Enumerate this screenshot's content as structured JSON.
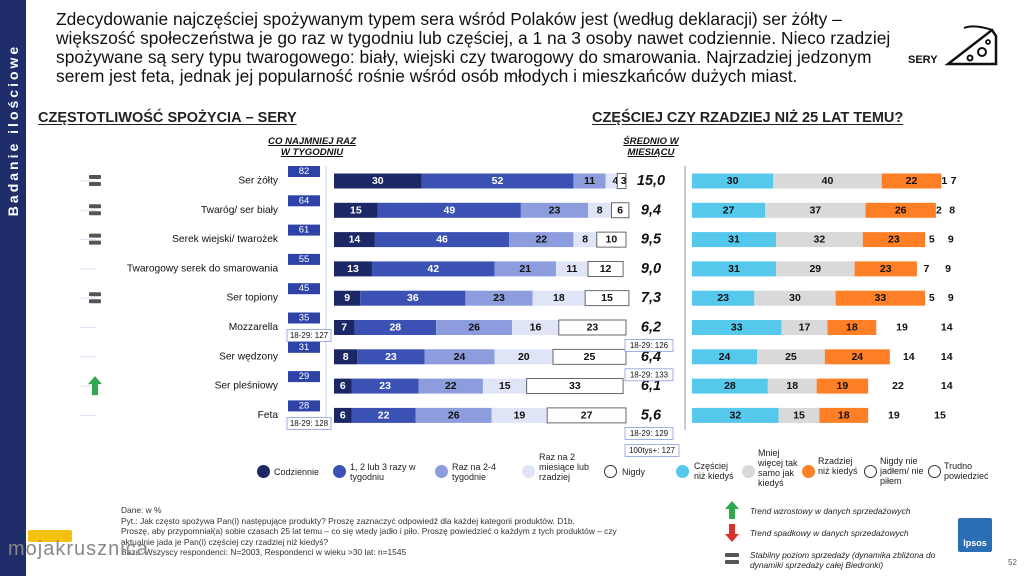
{
  "side_label": "Badanie ilościowe",
  "header": {
    "text": "Zdecydowanie najczęściej spożywanym typem sera wśród Polaków jest (według deklaracji) ser żółty – większość społeczeństwa je go raz w tygodniu lub częściej, a 1 na 3 osoby nawet codziennie. Nieco rzadziej spożywane są sery typu twarogowego: biały, wiejski czy twarogowy do smarowania. Najrzadziej jedzonym serem jest feta, jednak jej popularność rośnie wśród osób młodych i mieszkańców dużych miast.",
    "category": "SERY",
    "category_icon": "cheese-icon"
  },
  "left_title": {
    "pre": "CZĘSTOTLIWOŚĆ ",
    "bold": "SPOŻYCIA",
    "post": " – SERY"
  },
  "right_title": {
    "pre": "CZĘŚCIEJ CZY RZADZIEJ NIŻ ",
    "bold": "25",
    "post": " LAT TEMU?"
  },
  "col_head_weekly": [
    "CO NAJMNIEJ RAZ",
    "W TYGODNIU"
  ],
  "col_head_monthly": [
    "ŚREDNIO W",
    "MIESIĄCU"
  ],
  "colors": {
    "daily": "#1c2866",
    "weekly": "#3b52b4",
    "twofour": "#8c9cdc",
    "monthly": "#dfe4f6",
    "never_border": "#333333",
    "more": "#55c8ec",
    "same": "#d9d9d9",
    "less": "#ff7f27",
    "trend_up": "#2fa84f",
    "stable": "#555555",
    "badge": "#2d43a7"
  },
  "chart_data": [
    {
      "type": "bar",
      "title": "CZĘSTOTLIWOŚĆ SPOŻYCIA – SERY",
      "stacked": true,
      "categories": [
        "Ser żółty",
        "Twaróg/ ser biały",
        "Serek wiejski/ twarożek",
        "Twarogowy serek do smarowania",
        "Ser topiony",
        "Mozzarella",
        "Ser wędzony",
        "Ser pleśniowy",
        "Feta"
      ],
      "series": [
        {
          "name": "Codziennie",
          "values": [
            30,
            15,
            14,
            13,
            9,
            7,
            8,
            6,
            6
          ]
        },
        {
          "name": "1, 2 lub 3 razy w tygodniu",
          "values": [
            52,
            49,
            46,
            42,
            36,
            28,
            23,
            23,
            22
          ]
        },
        {
          "name": "Raz na 2-4 tygodnie",
          "values": [
            11,
            23,
            22,
            21,
            23,
            26,
            24,
            22,
            26
          ]
        },
        {
          "name": "Raz na 2 miesiące lub rzadziej",
          "values": [
            4,
            8,
            8,
            11,
            18,
            16,
            20,
            15,
            19
          ]
        },
        {
          "name": "Nigdy",
          "values": [
            3,
            6,
            10,
            12,
            15,
            23,
            25,
            33,
            27
          ]
        }
      ],
      "weekly_total": [
        82,
        64,
        61,
        55,
        45,
        35,
        31,
        29,
        28
      ],
      "monthly_avg": [
        "15,0",
        "9,4",
        "9,5",
        "9,0",
        "7,3",
        "6,2",
        "6,4",
        "6,1",
        "5,6"
      ],
      "trend": [
        "stable",
        "stable",
        "stable",
        "",
        "stable",
        "",
        "",
        "up",
        ""
      ],
      "notes": [
        {
          "row": 5,
          "side": "left",
          "text": "18-29: 127"
        },
        {
          "row": 5,
          "side": "right",
          "text": "18-29: 126"
        },
        {
          "row": 6,
          "side": "right",
          "text": "18-29: 133"
        },
        {
          "row": 8,
          "side": "left",
          "text": "18-29: 128"
        },
        {
          "row": 8,
          "side": "right",
          "text": "18-29: 129"
        },
        {
          "row": 8,
          "side": "right2",
          "text": "100tys+: 127"
        }
      ]
    },
    {
      "type": "bar",
      "title": "CZĘŚCIEJ CZY RZADZIEJ NIŻ 25 LAT TEMU?",
      "stacked": true,
      "categories": [
        "Ser żółty",
        "Twaróg/ ser biały",
        "Serek wiejski/ twarożek",
        "Twarogowy serek do smarowania",
        "Ser topiony",
        "Mozzarella",
        "Ser wędzony",
        "Ser pleśniowy",
        "Feta"
      ],
      "series": [
        {
          "name": "Częściej niż kiedyś",
          "values": [
            30,
            27,
            31,
            31,
            23,
            33,
            24,
            28,
            32
          ]
        },
        {
          "name": "Mniej więcej tak samo jak kiedyś",
          "values": [
            40,
            37,
            32,
            29,
            30,
            17,
            25,
            18,
            15
          ]
        },
        {
          "name": "Rzadziej niż kiedyś",
          "values": [
            22,
            26,
            23,
            23,
            33,
            18,
            24,
            19,
            18
          ]
        },
        {
          "name": "Nigdy nie jadłem/ nie piłem",
          "values": [
            1,
            2,
            5,
            7,
            5,
            19,
            14,
            22,
            19
          ]
        },
        {
          "name": "Trudno powiedzieć",
          "values": [
            7,
            8,
            9,
            9,
            9,
            14,
            14,
            14,
            15
          ]
        }
      ]
    }
  ],
  "legend_left": [
    {
      "label": "Codziennie",
      "key": "daily"
    },
    {
      "label": "1, 2 lub 3 razy w tygodniu",
      "key": "weekly"
    },
    {
      "label": "Raz na 2-4 tygodnie",
      "key": "twofour"
    },
    {
      "label": "Raz na 2 miesiące lub rzadziej",
      "key": "monthly"
    },
    {
      "label": "Nigdy",
      "key": "never"
    }
  ],
  "legend_right": [
    {
      "label": "Częściej niż kiedyś",
      "key": "more"
    },
    {
      "label": "Mniej więcej tak samo jak kiedyś",
      "key": "same"
    },
    {
      "label": "Rzadziej niż kiedyś",
      "key": "less"
    },
    {
      "label": "Nigdy nie jadłem/ nie piłem",
      "key": "never"
    },
    {
      "label": "Trudno powiedzieć",
      "key": "never"
    }
  ],
  "footnote": {
    "line1": "Dane: w %",
    "line2": "Pyt.: Jak często spożywa Pan(i) następujące produkty? Proszę zaznaczyć odpowiedź dla każdej kategorii produktów. D1b.",
    "line3": "Proszę, aby przypomniał(a) sobie czasach 25 lat temu – co się wtedy jadło i piło. Proszę powiedzieć o każdym z tych produktów – czy",
    "line4": "aktualnie jada je Pan(i) częściej czy rzadziej niż kiedyś?",
    "line5": "Baza: Wszyscy respondenci: N=2003, Respondenci w wieku >30 lat: n=1545"
  },
  "trend_legend": [
    {
      "icon": "arrow-up-icon",
      "text": "Trend wzrostowy w danych sprzedażowych"
    },
    {
      "icon": "arrow-down-icon",
      "text": "Trend spadkowy w danych sprzedażowych"
    },
    {
      "icon": "stable-icon",
      "text": "Stabilny poziom sprzedaży (dynamika zbliżona do dynamiki sprzedaży całej Biedronki)"
    }
  ],
  "logo": "Ipsos",
  "page_number": "52",
  "watermark": "mojakrusznica"
}
